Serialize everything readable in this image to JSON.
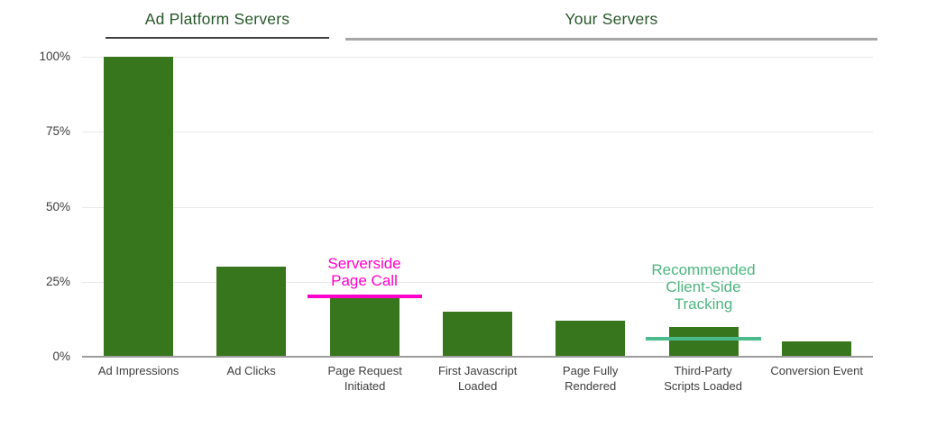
{
  "page": {
    "background": "#ffffff"
  },
  "groups": [
    {
      "label": "Ad Platform Servers",
      "categories_covered": [
        "Ad Impressions",
        "Ad Clicks"
      ]
    },
    {
      "label": "Your Servers",
      "categories_covered": [
        "Page Request Initiated",
        "First Javascript Loaded",
        "Page Fully Rendered",
        "Third-Party Scripts Loaded",
        "Conversion Event"
      ]
    }
  ],
  "chart_data": {
    "type": "bar",
    "title": "",
    "xlabel": "",
    "ylabel": "",
    "categories": [
      "Ad Impressions",
      "Ad Clicks",
      "Page Request\nInitiated",
      "First Javascript\nLoaded",
      "Page Fully\nRendered",
      "Third-Party\nScripts Loaded",
      "Conversion Event"
    ],
    "values": [
      100,
      30,
      20,
      15,
      12,
      10,
      5
    ],
    "unit": "%",
    "yticks": [
      "100%",
      "75%",
      "50%",
      "25%",
      "0%"
    ],
    "ylim": [
      0,
      100
    ],
    "grid": true,
    "legend": null,
    "bar_color": "#38761d",
    "gridline_color": "#e9e9e9",
    "axis_line_color": "#9c9c9c",
    "tick_label_color": "#3d3d3d",
    "group_header_color": "#27572a"
  },
  "annotations": [
    {
      "name": "serverside-page-call",
      "text": "Serverside\nPage Call",
      "bar_index": 2,
      "line_value_pct": 20,
      "text_color": "#ff00cc",
      "line_color": "#ff00cc"
    },
    {
      "name": "recommended-client-side-tracking",
      "text": "Recommended\nClient-Side\nTracking",
      "bar_index": 5,
      "line_value_pct": 6,
      "text_color": "#4db57e",
      "line_color": "#4cbb8c"
    }
  ]
}
